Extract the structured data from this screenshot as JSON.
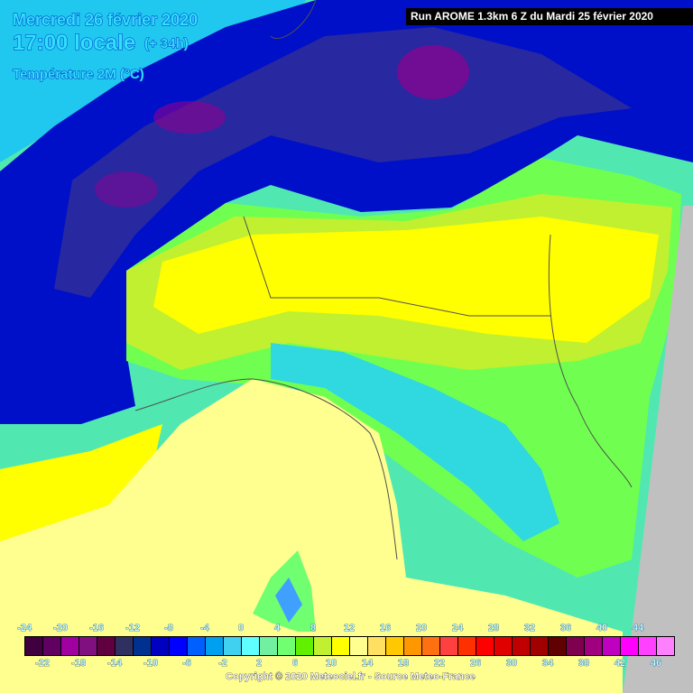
{
  "header": {
    "date": "Mercredi 26 février 2020",
    "local_time": "17:00 locale",
    "lead_time": "(+ 34h)",
    "parameter": "Température 2M (°C)",
    "run_info": "Run AROME 1.3km 6 Z du Mardi 25 février 2020"
  },
  "legend": {
    "unit": "°C",
    "top_labels": [
      "-24",
      "-20",
      "-16",
      "-12",
      "-8",
      "-4",
      "0",
      "4",
      "8",
      "12",
      "16",
      "20",
      "24",
      "28",
      "32",
      "36",
      "40",
      "44"
    ],
    "bottom_labels": [
      "-22",
      "-18",
      "-14",
      "-10",
      "-6",
      "-2",
      "2",
      "6",
      "10",
      "14",
      "18",
      "22",
      "26",
      "30",
      "34",
      "38",
      "42",
      "46"
    ],
    "colors": [
      "#400040",
      "#600060",
      "#a000a0",
      "#801080",
      "#600040",
      "#303060",
      "#003090",
      "#0000c0",
      "#0000ff",
      "#0060ff",
      "#00a0f0",
      "#40d0f0",
      "#60ffff",
      "#70f0a0",
      "#70ff70",
      "#60f000",
      "#c0f030",
      "#ffff00",
      "#ffff90",
      "#ffe060",
      "#ffc800",
      "#ff9800",
      "#ff7010",
      "#ff4040",
      "#ff3000",
      "#ff0000",
      "#e00000",
      "#c00000",
      "#a00000",
      "#600000",
      "#800050",
      "#a00080",
      "#c000c0",
      "#ff00ff",
      "#ff40ff",
      "#ff80ff"
    ]
  },
  "footer": {
    "copyright": "Copyright © 2020 Meteociel.fr - Source Meteo-France"
  },
  "map_colors": {
    "sea": "#ffff90",
    "outside_domain": "#c0c0c0",
    "plain": "#ffff00",
    "mountains": "#0000c0"
  }
}
